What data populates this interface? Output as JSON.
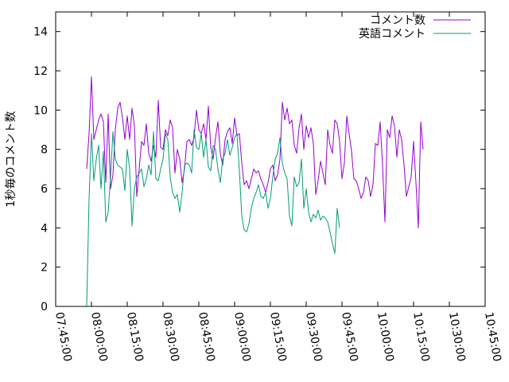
{
  "chart_data": {
    "type": "line",
    "title": "",
    "xlabel": "",
    "ylabel": "1秒毎のコメント数",
    "x_ticks": [
      "07:45:00",
      "08:00:00",
      "08:15:00",
      "08:30:00",
      "08:45:00",
      "09:00:00",
      "09:15:00",
      "09:30:00",
      "09:45:00",
      "10:00:00",
      "10:15:00",
      "10:30:00",
      "10:45:00"
    ],
    "y_ticks": [
      "0",
      "2",
      "4",
      "6",
      "8",
      "10",
      "12",
      "14"
    ],
    "ylim": [
      0,
      15
    ],
    "xlim": [
      "07:45:00",
      "10:45:00"
    ],
    "grid": false,
    "legend_position": "top-right",
    "series": [
      {
        "name": "コメント数",
        "color": "#9400d3",
        "points": [
          [
            "07:58:00",
            7.0
          ],
          [
            "07:59:00",
            8.8
          ],
          [
            "08:00:00",
            11.7
          ],
          [
            "08:01:00",
            8.5
          ],
          [
            "08:02:00",
            9.0
          ],
          [
            "08:03:00",
            9.5
          ],
          [
            "08:04:00",
            9.8
          ],
          [
            "08:05:00",
            9.4
          ],
          [
            "08:06:00",
            6.3
          ],
          [
            "08:07:00",
            9.8
          ],
          [
            "08:08:00",
            6.0
          ],
          [
            "08:09:00",
            6.7
          ],
          [
            "08:10:00",
            9.0
          ],
          [
            "08:11:00",
            10.1
          ],
          [
            "08:12:00",
            10.4
          ],
          [
            "08:13:00",
            9.6
          ],
          [
            "08:14:00",
            8.5
          ],
          [
            "08:15:00",
            9.7
          ],
          [
            "08:16:00",
            8.5
          ],
          [
            "08:17:00",
            10.1
          ],
          [
            "08:18:00",
            9.2
          ],
          [
            "08:19:00",
            5.6
          ],
          [
            "08:20:00",
            7.0
          ],
          [
            "08:21:00",
            8.4
          ],
          [
            "08:22:00",
            8.2
          ],
          [
            "08:23:00",
            9.3
          ],
          [
            "08:24:00",
            7.8
          ],
          [
            "08:25:00",
            7.4
          ],
          [
            "08:26:00",
            8.2
          ],
          [
            "08:27:00",
            7.6
          ],
          [
            "08:28:00",
            10.5
          ],
          [
            "08:29:00",
            8.1
          ],
          [
            "08:30:00",
            8.0
          ],
          [
            "08:31:00",
            9.0
          ],
          [
            "08:32:00",
            8.7
          ],
          [
            "08:33:00",
            9.5
          ],
          [
            "08:34:00",
            9.1
          ],
          [
            "08:35:00",
            6.8
          ],
          [
            "08:36:00",
            8.0
          ],
          [
            "08:37:00",
            7.5
          ],
          [
            "08:38:00",
            6.3
          ],
          [
            "08:39:00",
            7.0
          ],
          [
            "08:40:00",
            8.4
          ],
          [
            "08:41:00",
            8.5
          ],
          [
            "08:42:00",
            8.2
          ],
          [
            "08:43:00",
            8.6
          ],
          [
            "08:44:00",
            10.0
          ],
          [
            "08:45:00",
            9.0
          ],
          [
            "08:46:00",
            8.8
          ],
          [
            "08:47:00",
            9.3
          ],
          [
            "08:48:00",
            8.5
          ],
          [
            "08:49:00",
            10.2
          ],
          [
            "08:50:00",
            8.1
          ],
          [
            "08:51:00",
            7.5
          ],
          [
            "08:52:00",
            8.6
          ],
          [
            "08:53:00",
            9.4
          ],
          [
            "08:54:00",
            7.8
          ],
          [
            "08:55:00",
            7.2
          ],
          [
            "08:56:00",
            8.5
          ],
          [
            "08:57:00",
            8.9
          ],
          [
            "08:58:00",
            9.1
          ],
          [
            "08:59:00",
            8.3
          ],
          [
            "09:00:00",
            9.6
          ],
          [
            "09:01:00",
            8.7
          ],
          [
            "09:02:00",
            8.8
          ],
          [
            "09:03:00",
            7.3
          ],
          [
            "09:04:00",
            6.2
          ],
          [
            "09:05:00",
            6.4
          ],
          [
            "09:06:00",
            6.0
          ],
          [
            "09:07:00",
            6.5
          ],
          [
            "09:08:00",
            7.0
          ],
          [
            "09:09:00",
            6.8
          ],
          [
            "09:10:00",
            6.9
          ],
          [
            "09:11:00",
            6.5
          ],
          [
            "09:12:00",
            6.2
          ],
          [
            "09:13:00",
            5.8
          ],
          [
            "09:14:00",
            6.3
          ],
          [
            "09:15:00",
            7.0
          ],
          [
            "09:16:00",
            7.2
          ],
          [
            "09:17:00",
            6.4
          ],
          [
            "09:18:00",
            6.7
          ],
          [
            "09:19:00",
            7.5
          ],
          [
            "09:20:00",
            10.4
          ],
          [
            "09:21:00",
            9.5
          ],
          [
            "09:22:00",
            10.1
          ],
          [
            "09:23:00",
            9.3
          ],
          [
            "09:24:00",
            9.5
          ],
          [
            "09:25:00",
            8.2
          ],
          [
            "09:26:00",
            7.8
          ],
          [
            "09:27:00",
            9.1
          ],
          [
            "09:28:00",
            9.8
          ],
          [
            "09:29:00",
            8.0
          ],
          [
            "09:30:00",
            9.2
          ],
          [
            "09:31:00",
            8.6
          ],
          [
            "09:32:00",
            9.1
          ],
          [
            "09:33:00",
            8.3
          ],
          [
            "09:34:00",
            5.7
          ],
          [
            "09:35:00",
            6.4
          ],
          [
            "09:36:00",
            7.4
          ],
          [
            "09:37:00",
            6.8
          ],
          [
            "09:38:00",
            6.2
          ],
          [
            "09:39:00",
            9.0
          ],
          [
            "09:40:00",
            8.2
          ],
          [
            "09:41:00",
            7.8
          ],
          [
            "09:42:00",
            9.5
          ],
          [
            "09:43:00",
            9.3
          ],
          [
            "09:44:00",
            8.4
          ],
          [
            "09:45:00",
            6.5
          ],
          [
            "09:46:00",
            7.3
          ],
          [
            "09:47:00",
            9.7
          ],
          [
            "09:48:00",
            8.8
          ],
          [
            "09:49:00",
            7.9
          ],
          [
            "09:50:00",
            6.5
          ],
          [
            "09:51:00",
            6.4
          ],
          [
            "09:52:00",
            6.0
          ],
          [
            "09:53:00",
            5.5
          ],
          [
            "09:54:00",
            5.8
          ],
          [
            "09:55:00",
            6.6
          ],
          [
            "09:56:00",
            6.4
          ],
          [
            "09:57:00",
            5.6
          ],
          [
            "09:58:00",
            6.2
          ],
          [
            "09:59:00",
            8.3
          ],
          [
            "10:00:00",
            8.2
          ],
          [
            "10:01:00",
            9.4
          ],
          [
            "10:02:00",
            7.2
          ],
          [
            "10:03:00",
            4.3
          ],
          [
            "10:04:00",
            9.0
          ],
          [
            "10:05:00",
            8.6
          ],
          [
            "10:06:00",
            9.7
          ],
          [
            "10:07:00",
            9.2
          ],
          [
            "10:08:00",
            7.6
          ],
          [
            "10:09:00",
            9.0
          ],
          [
            "10:10:00",
            8.5
          ],
          [
            "10:11:00",
            7.2
          ],
          [
            "10:12:00",
            5.6
          ],
          [
            "10:13:00",
            6.1
          ],
          [
            "10:14:00",
            6.6
          ],
          [
            "10:15:00",
            8.4
          ],
          [
            "10:16:00",
            6.3
          ],
          [
            "10:17:00",
            4.0
          ],
          [
            "10:18:00",
            9.4
          ],
          [
            "10:19:00",
            8.0
          ]
        ]
      },
      {
        "name": "英語コメント",
        "color": "#009e73",
        "points": [
          [
            "07:58:00",
            0.0
          ],
          [
            "07:59:00",
            5.5
          ],
          [
            "08:00:00",
            8.8
          ],
          [
            "08:01:00",
            6.4
          ],
          [
            "08:02:00",
            7.5
          ],
          [
            "08:03:00",
            8.2
          ],
          [
            "08:04:00",
            6.0
          ],
          [
            "08:05:00",
            7.9
          ],
          [
            "08:06:00",
            4.3
          ],
          [
            "08:07:00",
            4.8
          ],
          [
            "08:08:00",
            6.6
          ],
          [
            "08:09:00",
            8.9
          ],
          [
            "08:10:00",
            7.5
          ],
          [
            "08:11:00",
            7.2
          ],
          [
            "08:12:00",
            7.1
          ],
          [
            "08:13:00",
            7.0
          ],
          [
            "08:14:00",
            5.9
          ],
          [
            "08:15:00",
            8.0
          ],
          [
            "08:16:00",
            7.0
          ],
          [
            "08:17:00",
            4.1
          ],
          [
            "08:18:00",
            6.0
          ],
          [
            "08:19:00",
            6.6
          ],
          [
            "08:20:00",
            6.8
          ],
          [
            "08:21:00",
            7.0
          ],
          [
            "08:22:00",
            6.1
          ],
          [
            "08:23:00",
            6.5
          ],
          [
            "08:24:00",
            7.2
          ],
          [
            "08:25:00",
            6.7
          ],
          [
            "08:26:00",
            8.9
          ],
          [
            "08:27:00",
            6.5
          ],
          [
            "08:28:00",
            6.4
          ],
          [
            "08:29:00",
            7.0
          ],
          [
            "08:30:00",
            7.5
          ],
          [
            "08:31:00",
            8.8
          ],
          [
            "08:32:00",
            8.5
          ],
          [
            "08:33:00",
            6.6
          ],
          [
            "08:34:00",
            5.8
          ],
          [
            "08:35:00",
            5.5
          ],
          [
            "08:36:00",
            5.7
          ],
          [
            "08:37:00",
            4.8
          ],
          [
            "08:38:00",
            5.8
          ],
          [
            "08:39:00",
            7.2
          ],
          [
            "08:40:00",
            7.3
          ],
          [
            "08:41:00",
            7.2
          ],
          [
            "08:42:00",
            6.8
          ],
          [
            "08:43:00",
            9.0
          ],
          [
            "08:44:00",
            8.1
          ],
          [
            "08:45:00",
            8.0
          ],
          [
            "08:46:00",
            8.8
          ],
          [
            "08:47:00",
            7.6
          ],
          [
            "08:48:00",
            8.5
          ],
          [
            "08:49:00",
            7.1
          ],
          [
            "08:50:00",
            6.9
          ],
          [
            "08:51:00",
            8.2
          ],
          [
            "08:52:00",
            8.0
          ],
          [
            "08:53:00",
            7.0
          ],
          [
            "08:54:00",
            6.3
          ],
          [
            "08:55:00",
            7.5
          ],
          [
            "08:56:00",
            7.8
          ],
          [
            "08:57:00",
            8.5
          ],
          [
            "08:58:00",
            7.7
          ],
          [
            "08:59:00",
            8.1
          ],
          [
            "09:00:00",
            8.6
          ],
          [
            "09:01:00",
            8.8
          ],
          [
            "09:02:00",
            6.9
          ],
          [
            "09:03:00",
            4.6
          ],
          [
            "09:04:00",
            3.9
          ],
          [
            "09:05:00",
            3.8
          ],
          [
            "09:06:00",
            4.2
          ],
          [
            "09:07:00",
            5.0
          ],
          [
            "09:08:00",
            5.5
          ],
          [
            "09:09:00",
            5.8
          ],
          [
            "09:10:00",
            6.2
          ],
          [
            "09:11:00",
            5.6
          ],
          [
            "09:12:00",
            5.5
          ],
          [
            "09:13:00",
            5.8
          ],
          [
            "09:14:00",
            5.0
          ],
          [
            "09:15:00",
            5.5
          ],
          [
            "09:16:00",
            6.6
          ],
          [
            "09:17:00",
            7.5
          ],
          [
            "09:18:00",
            7.8
          ],
          [
            "09:19:00",
            8.6
          ],
          [
            "09:20:00",
            7.3
          ],
          [
            "09:21:00",
            6.8
          ],
          [
            "09:22:00",
            6.5
          ],
          [
            "09:23:00",
            4.6
          ],
          [
            "09:24:00",
            4.1
          ],
          [
            "09:25:00",
            6.6
          ],
          [
            "09:26:00",
            6.1
          ],
          [
            "09:27:00",
            6.3
          ],
          [
            "09:28:00",
            7.5
          ],
          [
            "09:29:00",
            5.0
          ],
          [
            "09:30:00",
            6.0
          ],
          [
            "09:31:00",
            4.8
          ],
          [
            "09:32:00",
            4.3
          ],
          [
            "09:33:00",
            4.7
          ],
          [
            "09:34:00",
            4.5
          ],
          [
            "09:35:00",
            4.9
          ],
          [
            "09:36:00",
            4.4
          ],
          [
            "09:37:00",
            4.6
          ],
          [
            "09:38:00",
            4.5
          ],
          [
            "09:39:00",
            4.3
          ],
          [
            "09:40:00",
            3.8
          ],
          [
            "09:41:00",
            3.2
          ],
          [
            "09:42:00",
            2.7
          ],
          [
            "09:43:00",
            5.0
          ],
          [
            "09:44:00",
            4.0
          ]
        ]
      }
    ]
  }
}
